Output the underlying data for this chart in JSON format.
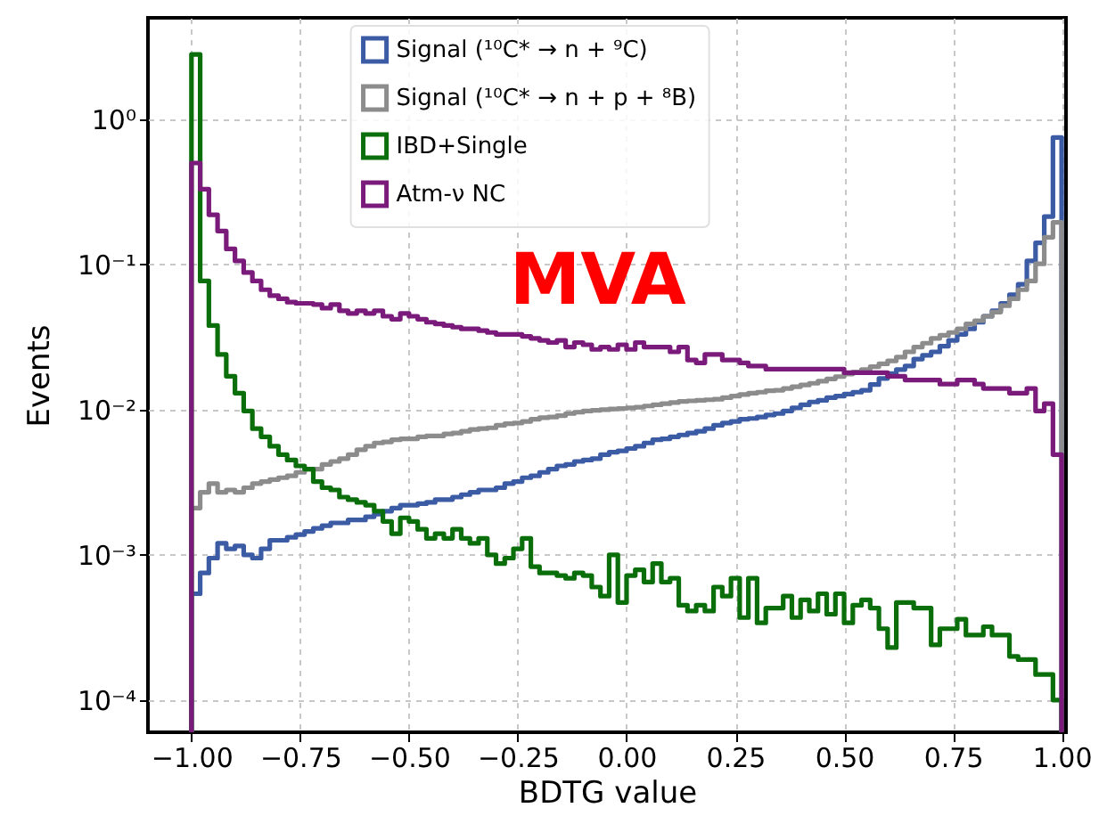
{
  "chart_data": {
    "type": "histogram",
    "xlabel": "BDTG value",
    "ylabel": "Events",
    "log": "y",
    "grid": true,
    "legend": "top",
    "annotations": [
      "MVA"
    ],
    "xlim": [
      -1.1,
      1.01
    ],
    "ylim": [
      6e-05,
      5
    ],
    "xticks": [
      {
        "value": -1,
        "label": "−1.00"
      },
      {
        "value": -0.75,
        "label": "−0.75"
      },
      {
        "value": -0.5,
        "label": "−0.50"
      },
      {
        "value": -0.25,
        "label": "−0.25"
      },
      {
        "value": 0,
        "label": "0.00"
      },
      {
        "value": 0.25,
        "label": "0.25"
      },
      {
        "value": 0.5,
        "label": "0.50"
      },
      {
        "value": 0.75,
        "label": "0.75"
      },
      {
        "value": 1,
        "label": "1.00"
      }
    ],
    "yticks": [
      {
        "value": 0.0001,
        "label": "10⁻⁴"
      },
      {
        "value": 0.001,
        "label": "10⁻³"
      },
      {
        "value": 0.01,
        "label": "10⁻²"
      },
      {
        "value": 0.1,
        "label": "10⁻¹"
      },
      {
        "value": 1,
        "label": "10⁰"
      }
    ],
    "bins": [
      -1,
      -0.98,
      -0.96,
      -0.94,
      -0.92,
      -0.9,
      -0.88,
      -0.86,
      -0.84,
      -0.82,
      -0.8,
      -0.78,
      -0.76,
      -0.74,
      -0.72,
      -0.7,
      -0.68,
      -0.66,
      -0.64,
      -0.62,
      -0.6,
      -0.58,
      -0.56,
      -0.54,
      -0.52,
      -0.5,
      -0.48,
      -0.46,
      -0.44,
      -0.42,
      -0.4,
      -0.38,
      -0.36,
      -0.34,
      -0.32,
      -0.3,
      -0.28,
      -0.26,
      -0.24,
      -0.22,
      -0.2,
      -0.18,
      -0.16,
      -0.14,
      -0.12,
      -0.1,
      -0.08,
      -0.06,
      -0.04,
      -0.02,
      0,
      0.02,
      0.04,
      0.06,
      0.08,
      0.1,
      0.12,
      0.14,
      0.16,
      0.18,
      0.2,
      0.22,
      0.24,
      0.26,
      0.28,
      0.3,
      0.32,
      0.34,
      0.36,
      0.38,
      0.4,
      0.42,
      0.44,
      0.46,
      0.48,
      0.5,
      0.52,
      0.54,
      0.56,
      0.58,
      0.6,
      0.62,
      0.64,
      0.66,
      0.68,
      0.7,
      0.72,
      0.74,
      0.76,
      0.78,
      0.8,
      0.82,
      0.84,
      0.86,
      0.88,
      0.9,
      0.92,
      0.94,
      0.96,
      0.98,
      1
    ],
    "series": [
      {
        "name": "Signal (¹⁰C* → n + ⁹C)",
        "color": "#3b5ba5",
        "values": [
          0.00054,
          0.00075,
          0.00095,
          0.0012,
          0.0011,
          0.00115,
          0.001,
          0.00095,
          0.0011,
          0.00126,
          0.00126,
          0.00132,
          0.00138,
          0.00145,
          0.00152,
          0.00159,
          0.00166,
          0.00166,
          0.00174,
          0.00174,
          0.00183,
          0.00191,
          0.002,
          0.0021,
          0.0022,
          0.0022,
          0.00225,
          0.0023,
          0.0024,
          0.0024,
          0.0025,
          0.0026,
          0.0027,
          0.0028,
          0.0028,
          0.0029,
          0.0031,
          0.0032,
          0.0034,
          0.0035,
          0.0037,
          0.0039,
          0.0041,
          0.0042,
          0.0044,
          0.0045,
          0.0046,
          0.0049,
          0.0051,
          0.0052,
          0.0054,
          0.0056,
          0.0059,
          0.0062,
          0.0063,
          0.0065,
          0.0067,
          0.0069,
          0.0071,
          0.0074,
          0.0078,
          0.0081,
          0.0083,
          0.0086,
          0.0087,
          0.0089,
          0.0092,
          0.0094,
          0.0098,
          0.0103,
          0.0108,
          0.0113,
          0.0116,
          0.0121,
          0.0124,
          0.0128,
          0.0132,
          0.0136,
          0.0149,
          0.0164,
          0.0177,
          0.0189,
          0.02,
          0.0223,
          0.0237,
          0.025,
          0.0274,
          0.03,
          0.033,
          0.036,
          0.04,
          0.044,
          0.048,
          0.054,
          0.062,
          0.073,
          0.106,
          0.141,
          0.214,
          0.75
        ]
      },
      {
        "name": "Signal (¹⁰C* → n + p + ⁸B)",
        "color": "#8c8c8c",
        "values": [
          0.0021,
          0.0027,
          0.0031,
          0.0027,
          0.0028,
          0.0027,
          0.0029,
          0.0031,
          0.0032,
          0.0033,
          0.0034,
          0.0035,
          0.0037,
          0.0039,
          0.0039,
          0.0042,
          0.0044,
          0.0046,
          0.0049,
          0.0053,
          0.0056,
          0.0059,
          0.006,
          0.0062,
          0.0063,
          0.0063,
          0.0065,
          0.0066,
          0.0066,
          0.0068,
          0.0069,
          0.0071,
          0.0073,
          0.0074,
          0.0075,
          0.0078,
          0.008,
          0.0081,
          0.0083,
          0.0086,
          0.0088,
          0.0089,
          0.0091,
          0.0094,
          0.0096,
          0.0098,
          0.0099,
          0.01,
          0.0101,
          0.0102,
          0.0103,
          0.0104,
          0.0106,
          0.0108,
          0.011,
          0.0112,
          0.0114,
          0.0115,
          0.0116,
          0.0117,
          0.0118,
          0.0121,
          0.0124,
          0.0127,
          0.013,
          0.0132,
          0.0135,
          0.0136,
          0.014,
          0.0144,
          0.0148,
          0.0152,
          0.0157,
          0.0163,
          0.0169,
          0.0176,
          0.0182,
          0.0189,
          0.0198,
          0.0207,
          0.0217,
          0.023,
          0.025,
          0.027,
          0.0287,
          0.031,
          0.0325,
          0.034,
          0.036,
          0.039,
          0.041,
          0.044,
          0.047,
          0.052,
          0.058,
          0.067,
          0.077,
          0.101,
          0.154,
          0.195
        ]
      },
      {
        "name": "IBD+Single",
        "color": "#0a6e0a",
        "values": [
          2.8,
          0.077,
          0.038,
          0.024,
          0.017,
          0.013,
          0.0098,
          0.0074,
          0.0065,
          0.0056,
          0.0049,
          0.0045,
          0.0041,
          0.0039,
          0.0032,
          0.0029,
          0.0028,
          0.0025,
          0.0024,
          0.0023,
          0.0022,
          0.002,
          0.0017,
          0.0014,
          0.0018,
          0.0017,
          0.0015,
          0.0013,
          0.0014,
          0.0013,
          0.0015,
          0.0013,
          0.0012,
          0.0013,
          0.001,
          0.00087,
          0.00095,
          0.0011,
          0.0013,
          0.00083,
          0.00075,
          0.00075,
          0.00072,
          0.00069,
          0.00075,
          0.00072,
          0.0006,
          0.00052,
          0.001,
          0.00047,
          0.00072,
          0.00079,
          0.00065,
          0.00087,
          0.00065,
          0.00069,
          0.00045,
          0.00041,
          0.00045,
          0.00041,
          0.0006,
          0.00052,
          0.00069,
          0.00037,
          0.00069,
          0.00034,
          0.00043,
          0.00043,
          0.00052,
          0.00037,
          0.00049,
          0.00041,
          0.00054,
          0.00039,
          0.00054,
          0.00034,
          0.00045,
          0.00049,
          0.00043,
          0.00031,
          0.00023,
          0.00047,
          0.00047,
          0.00043,
          0.00043,
          0.00024,
          0.00031,
          0.00031,
          0.00036,
          0.00028,
          0.00028,
          0.00032,
          0.00028,
          0.00028,
          0.0002,
          0.00019,
          0.00019,
          0.00015,
          0.00015,
          0.0001
        ]
      },
      {
        "name": "Atm-ν NC",
        "color": "#7a1a7a",
        "values": [
          0.5,
          0.33,
          0.22,
          0.17,
          0.128,
          0.106,
          0.088,
          0.077,
          0.067,
          0.061,
          0.058,
          0.055,
          0.054,
          0.054,
          0.053,
          0.05,
          0.053,
          0.048,
          0.046,
          0.048,
          0.046,
          0.048,
          0.044,
          0.042,
          0.046,
          0.044,
          0.042,
          0.04,
          0.039,
          0.038,
          0.037,
          0.036,
          0.036,
          0.035,
          0.034,
          0.033,
          0.033,
          0.033,
          0.032,
          0.031,
          0.03,
          0.029,
          0.03,
          0.027,
          0.029,
          0.028,
          0.026,
          0.027,
          0.026,
          0.028,
          0.026,
          0.029,
          0.027,
          0.027,
          0.027,
          0.025,
          0.027,
          0.022,
          0.021,
          0.024,
          0.024,
          0.022,
          0.022,
          0.021,
          0.02,
          0.02,
          0.019,
          0.019,
          0.019,
          0.019,
          0.019,
          0.019,
          0.019,
          0.019,
          0.019,
          0.018,
          0.018,
          0.018,
          0.018,
          0.018,
          0.017,
          0.017,
          0.016,
          0.016,
          0.016,
          0.016,
          0.015,
          0.015,
          0.016,
          0.016,
          0.015,
          0.014,
          0.014,
          0.014,
          0.013,
          0.013,
          0.014,
          0.0098,
          0.011,
          0.0049
        ]
      }
    ]
  }
}
